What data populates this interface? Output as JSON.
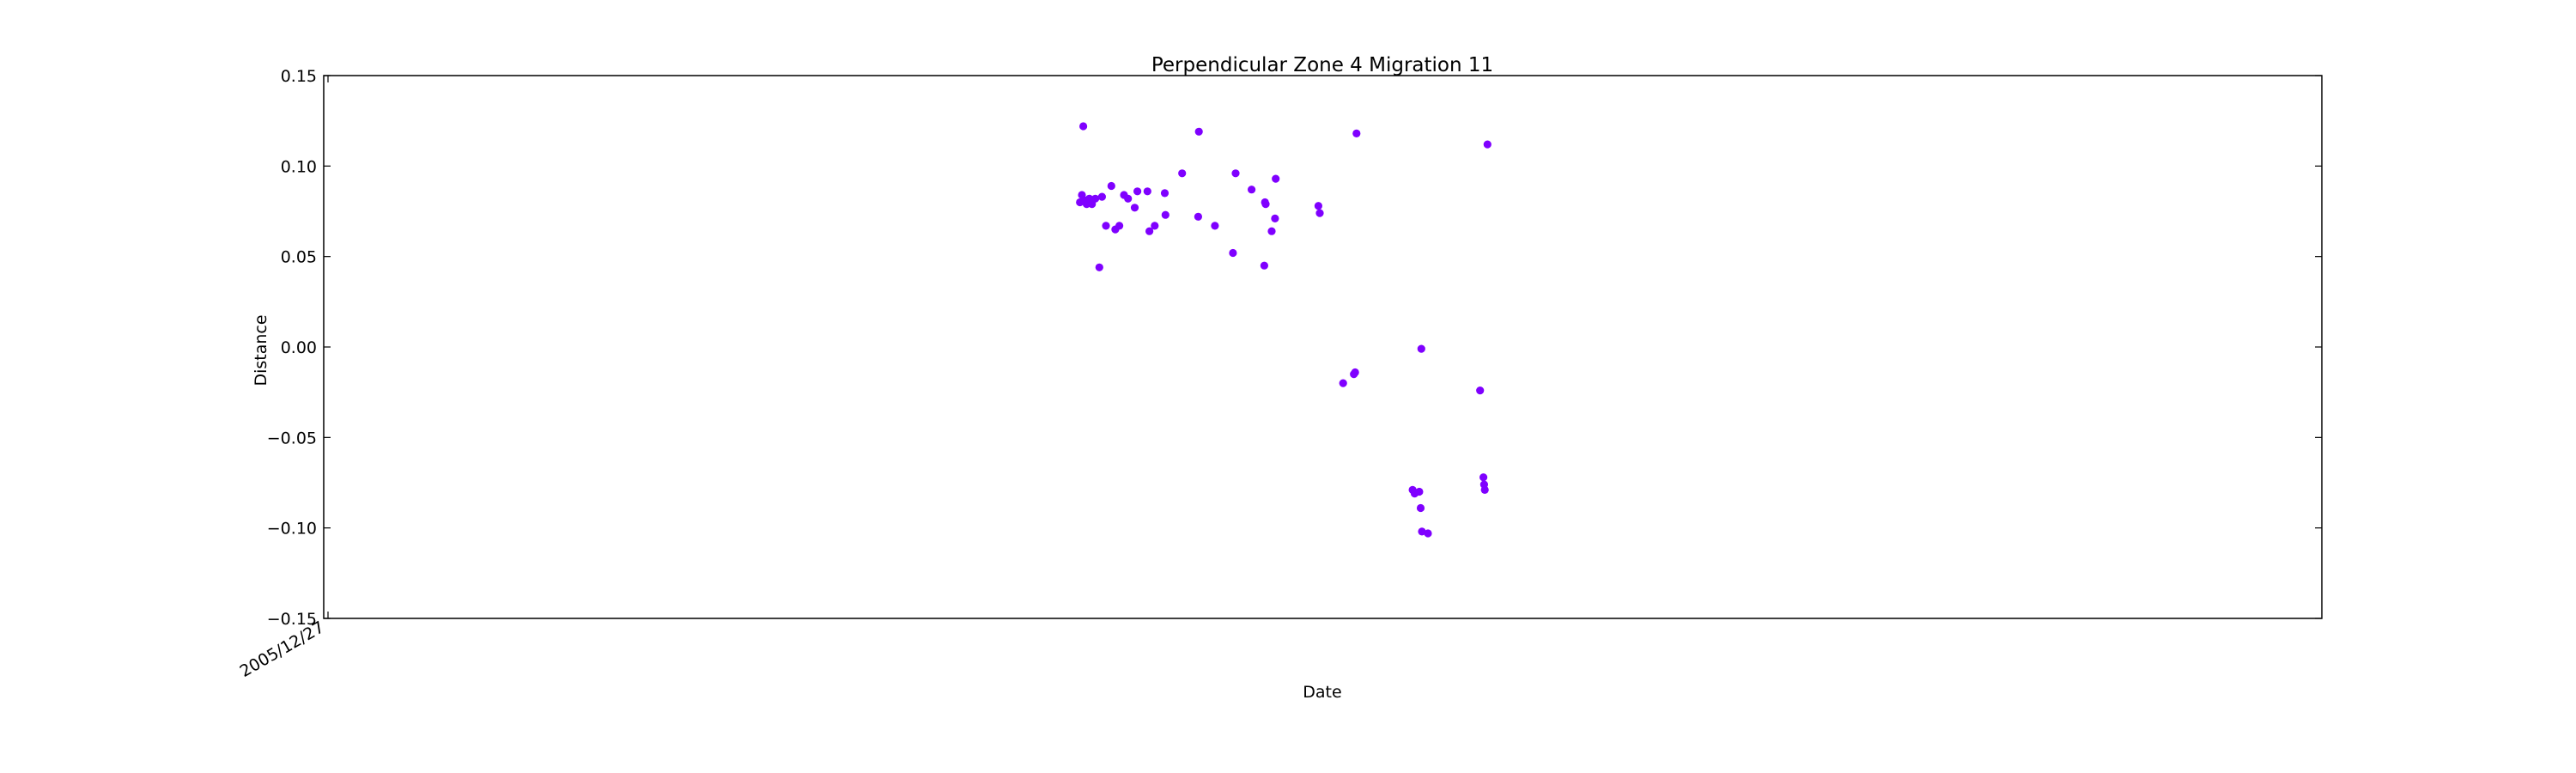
{
  "chart_data": {
    "type": "scatter",
    "title": "Perpendicular Zone 4 Migration 11",
    "xlabel": "Date",
    "ylabel": "Distance",
    "x_tick_labels": [
      "2005/12/27"
    ],
    "y_tick_labels": [
      "0.15",
      "0.10",
      "0.05",
      "0.00",
      "−0.05",
      "−0.10",
      "−0.15"
    ],
    "y_ticks": [
      0.15,
      0.1,
      0.05,
      0.0,
      -0.05,
      -0.1,
      -0.15
    ],
    "ylim": [
      -0.15,
      0.15
    ],
    "xlim": [
      "2005-12-27",
      "2014-03-06"
    ],
    "grid": false,
    "marker_color": "#7f00ff",
    "series": [
      {
        "points": [
          [
            "2009-02-01",
            0.08
          ],
          [
            "2009-02-04",
            0.084
          ],
          [
            "2009-02-06",
            0.122
          ],
          [
            "2009-02-08",
            0.081
          ],
          [
            "2009-02-11",
            0.079
          ],
          [
            "2009-02-15",
            0.082
          ],
          [
            "2009-02-19",
            0.079
          ],
          [
            "2009-02-24",
            0.082
          ],
          [
            "2009-03-02",
            0.044
          ],
          [
            "2009-03-06",
            0.083
          ],
          [
            "2009-03-12",
            0.067
          ],
          [
            "2009-03-20",
            0.089
          ],
          [
            "2009-03-26",
            0.065
          ],
          [
            "2009-04-01",
            0.067
          ],
          [
            "2009-04-08",
            0.084
          ],
          [
            "2009-04-14",
            0.082
          ],
          [
            "2009-04-24",
            0.077
          ],
          [
            "2009-04-28",
            0.086
          ],
          [
            "2009-05-13",
            0.086
          ],
          [
            "2009-05-16",
            0.064
          ],
          [
            "2009-05-24",
            0.067
          ],
          [
            "2009-06-08",
            0.085
          ],
          [
            "2009-06-09",
            0.073
          ],
          [
            "2009-07-04",
            0.096
          ],
          [
            "2009-07-28",
            0.072
          ],
          [
            "2009-07-29",
            0.119
          ],
          [
            "2009-08-22",
            0.067
          ],
          [
            "2009-09-18",
            0.052
          ],
          [
            "2009-09-22",
            0.096
          ],
          [
            "2009-10-16",
            0.087
          ],
          [
            "2009-11-04",
            0.045
          ],
          [
            "2009-11-05",
            0.08
          ],
          [
            "2009-11-06",
            0.079
          ],
          [
            "2009-11-15",
            0.064
          ],
          [
            "2009-11-20",
            0.071
          ],
          [
            "2009-11-21",
            0.093
          ],
          [
            "2010-01-24",
            0.078
          ],
          [
            "2010-01-26",
            0.074
          ],
          [
            "2010-03-02",
            -0.02
          ],
          [
            "2010-03-18",
            -0.015
          ],
          [
            "2010-03-20",
            -0.014
          ],
          [
            "2010-03-22",
            0.118
          ],
          [
            "2010-06-14",
            -0.079
          ],
          [
            "2010-06-17",
            -0.081
          ],
          [
            "2010-06-24",
            -0.08
          ],
          [
            "2010-06-26",
            -0.089
          ],
          [
            "2010-06-27",
            -0.001
          ],
          [
            "2010-06-28",
            -0.102
          ],
          [
            "2010-07-07",
            -0.103
          ],
          [
            "2010-09-23",
            -0.024
          ],
          [
            "2010-09-28",
            -0.072
          ],
          [
            "2010-09-29",
            -0.076
          ],
          [
            "2010-09-30",
            -0.079
          ],
          [
            "2010-10-04",
            0.112
          ]
        ]
      }
    ]
  }
}
